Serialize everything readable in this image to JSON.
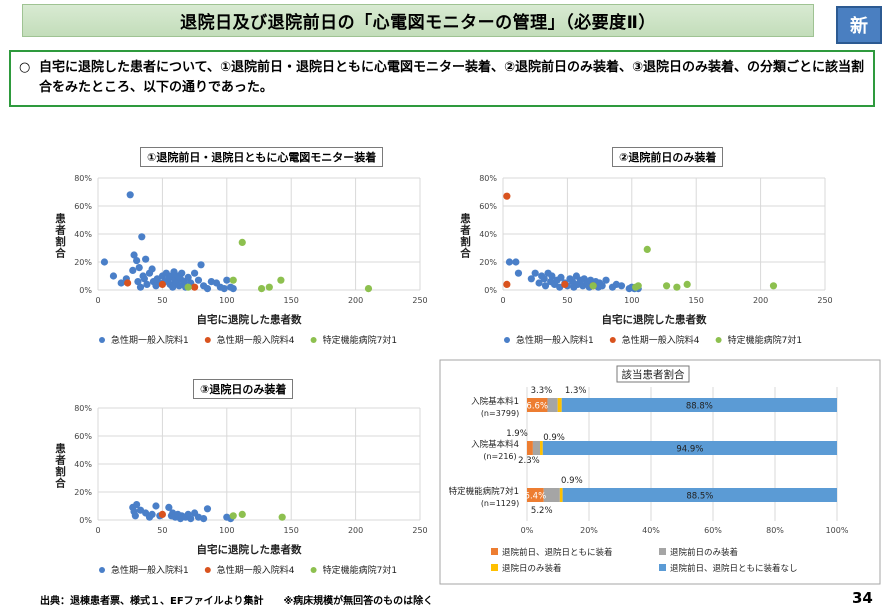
{
  "header": {
    "title": "退院日及び退院前日の「心電図モニターの管理」（必要度Ⅱ）",
    "badge": "新"
  },
  "summary": {
    "bullet": "○",
    "text": "自宅に退院した患者について、①退院前日・退院日ともに心電図モニター装着、②退院前日のみ装着、③退院日のみ装着、の分類ごとに該当割合をみたところ、以下の通りであった。"
  },
  "footer": {
    "source": "出典：退棟患者票、様式１、EFファイルより集計　　※病床規模が無回答のものは除く",
    "page_number": "34"
  },
  "colors": {
    "acute1": "#4a7fc8",
    "acute4": "#d9531e",
    "special7": "#8dc04f",
    "same_both": "#ed7d31",
    "prev_only": "#a5a5a5",
    "day_only": "#ffc000",
    "none": "#5b9bd5",
    "title_green": "#c9e2c0",
    "box_border": "#2e9a3d"
  },
  "chart_data": [
    {
      "type": "scatter",
      "title": "①退院前日・退院日ともに心電図モニター装着",
      "xlabel": "自宅に退院した患者数",
      "ylabel": "患者割合",
      "xlim": [
        0,
        250
      ],
      "ylim": [
        0,
        0.8
      ],
      "xticks": [
        "0",
        "50",
        "100",
        "150",
        "200",
        "250"
      ],
      "yticks": [
        "0%",
        "20%",
        "40%",
        "60%",
        "80%"
      ],
      "legend_position": "bottom",
      "series": [
        {
          "name": "急性期一般入院料1",
          "color_key": "acute1",
          "points": [
            [
              5,
              0.2
            ],
            [
              12,
              0.1
            ],
            [
              18,
              0.05
            ],
            [
              22,
              0.08
            ],
            [
              25,
              0.68
            ],
            [
              27,
              0.14
            ],
            [
              28,
              0.25
            ],
            [
              30,
              0.21
            ],
            [
              31,
              0.06
            ],
            [
              32,
              0.16
            ],
            [
              33,
              0.02
            ],
            [
              34,
              0.38
            ],
            [
              35,
              0.1
            ],
            [
              36,
              0.08
            ],
            [
              37,
              0.22
            ],
            [
              38,
              0.04
            ],
            [
              40,
              0.12
            ],
            [
              42,
              0.15
            ],
            [
              43,
              0.06
            ],
            [
              45,
              0.03
            ],
            [
              46,
              0.08
            ],
            [
              48,
              0.05
            ],
            [
              50,
              0.1
            ],
            [
              52,
              0.06
            ],
            [
              53,
              0.12
            ],
            [
              55,
              0.08
            ],
            [
              56,
              0.04
            ],
            [
              57,
              0.1
            ],
            [
              58,
              0.02
            ],
            [
              59,
              0.13
            ],
            [
              60,
              0.07
            ],
            [
              61,
              0.05
            ],
            [
              62,
              0.1
            ],
            [
              63,
              0.03
            ],
            [
              64,
              0.08
            ],
            [
              65,
              0.12
            ],
            [
              66,
              0.04
            ],
            [
              67,
              0.06
            ],
            [
              68,
              0.02
            ],
            [
              70,
              0.09
            ],
            [
              72,
              0.05
            ],
            [
              75,
              0.12
            ],
            [
              78,
              0.07
            ],
            [
              80,
              0.18
            ],
            [
              82,
              0.03
            ],
            [
              85,
              0.01
            ],
            [
              88,
              0.06
            ],
            [
              92,
              0.05
            ],
            [
              95,
              0.02
            ],
            [
              98,
              0.01
            ],
            [
              100,
              0.07
            ],
            [
              103,
              0.02
            ],
            [
              105,
              0.01
            ]
          ]
        },
        {
          "name": "急性期一般入院料4",
          "color_key": "acute4",
          "points": [
            [
              23,
              0.05
            ],
            [
              50,
              0.04
            ],
            [
              75,
              0.02
            ]
          ]
        },
        {
          "name": "特定機能病院7対1",
          "color_key": "special7",
          "points": [
            [
              70,
              0.02
            ],
            [
              105,
              0.07
            ],
            [
              112,
              0.34
            ],
            [
              127,
              0.01
            ],
            [
              133,
              0.02
            ],
            [
              142,
              0.07
            ],
            [
              210,
              0.01
            ]
          ]
        }
      ]
    },
    {
      "type": "scatter",
      "title": "②退院前日のみ装着",
      "xlabel": "自宅に退院した患者数",
      "ylabel": "患者割合",
      "xlim": [
        0,
        250
      ],
      "ylim": [
        0,
        0.8
      ],
      "xticks": [
        "0",
        "50",
        "100",
        "150",
        "200",
        "250"
      ],
      "yticks": [
        "0%",
        "20%",
        "40%",
        "60%",
        "80%"
      ],
      "legend_position": "bottom",
      "series": [
        {
          "name": "急性期一般入院料1",
          "color_key": "acute1",
          "points": [
            [
              5,
              0.2
            ],
            [
              10,
              0.2
            ],
            [
              12,
              0.12
            ],
            [
              22,
              0.08
            ],
            [
              25,
              0.12
            ],
            [
              28,
              0.05
            ],
            [
              30,
              0.1
            ],
            [
              32,
              0.08
            ],
            [
              33,
              0.03
            ],
            [
              35,
              0.12
            ],
            [
              37,
              0.06
            ],
            [
              38,
              0.1
            ],
            [
              40,
              0.04
            ],
            [
              42,
              0.07
            ],
            [
              44,
              0.02
            ],
            [
              45,
              0.09
            ],
            [
              48,
              0.05
            ],
            [
              50,
              0.03
            ],
            [
              52,
              0.08
            ],
            [
              54,
              0.06
            ],
            [
              55,
              0.02
            ],
            [
              57,
              0.1
            ],
            [
              58,
              0.04
            ],
            [
              60,
              0.07
            ],
            [
              62,
              0.03
            ],
            [
              63,
              0.08
            ],
            [
              65,
              0.05
            ],
            [
              67,
              0.02
            ],
            [
              68,
              0.07
            ],
            [
              70,
              0.04
            ],
            [
              72,
              0.06
            ],
            [
              74,
              0.02
            ],
            [
              75,
              0.05
            ],
            [
              77,
              0.03
            ],
            [
              80,
              0.07
            ],
            [
              85,
              0.02
            ],
            [
              88,
              0.04
            ],
            [
              92,
              0.03
            ],
            [
              98,
              0.01
            ],
            [
              100,
              0.02
            ],
            [
              102,
              0.01
            ],
            [
              105,
              0.01
            ]
          ]
        },
        {
          "name": "急性期一般入院料4",
          "color_key": "acute4",
          "points": [
            [
              3,
              0.67
            ],
            [
              3,
              0.04
            ],
            [
              48,
              0.04
            ],
            [
              70,
              0.03
            ]
          ]
        },
        {
          "name": "特定機能病院7対1",
          "color_key": "special7",
          "points": [
            [
              70,
              0.03
            ],
            [
              103,
              0.02
            ],
            [
              105,
              0.03
            ],
            [
              112,
              0.29
            ],
            [
              127,
              0.03
            ],
            [
              135,
              0.02
            ],
            [
              143,
              0.04
            ],
            [
              210,
              0.03
            ]
          ]
        }
      ]
    },
    {
      "type": "scatter",
      "title": "③退院日のみ装着",
      "xlabel": "自宅に退院した患者数",
      "ylabel": "患者割合",
      "xlim": [
        0,
        250
      ],
      "ylim": [
        0,
        0.8
      ],
      "xticks": [
        "0",
        "50",
        "100",
        "150",
        "200",
        "250"
      ],
      "yticks": [
        "0%",
        "20%",
        "40%",
        "60%",
        "80%"
      ],
      "legend_position": "bottom",
      "series": [
        {
          "name": "急性期一般入院料1",
          "color_key": "acute1",
          "points": [
            [
              27,
              0.09
            ],
            [
              28,
              0.06
            ],
            [
              29,
              0.03
            ],
            [
              30,
              0.11
            ],
            [
              33,
              0.07
            ],
            [
              37,
              0.05
            ],
            [
              40,
              0.02
            ],
            [
              42,
              0.04
            ],
            [
              45,
              0.1
            ],
            [
              48,
              0.03
            ],
            [
              55,
              0.09
            ],
            [
              57,
              0.03
            ],
            [
              58,
              0.05
            ],
            [
              60,
              0.02
            ],
            [
              62,
              0.04
            ],
            [
              64,
              0.01
            ],
            [
              65,
              0.03
            ],
            [
              68,
              0.02
            ],
            [
              70,
              0.04
            ],
            [
              72,
              0.01
            ],
            [
              75,
              0.05
            ],
            [
              78,
              0.02
            ],
            [
              82,
              0.01
            ],
            [
              85,
              0.08
            ],
            [
              100,
              0.02
            ],
            [
              103,
              0.01
            ]
          ]
        },
        {
          "name": "急性期一般入院料4",
          "color_key": "acute4",
          "points": [
            [
              50,
              0.04
            ]
          ]
        },
        {
          "name": "特定機能病院7対1",
          "color_key": "special7",
          "points": [
            [
              105,
              0.03
            ],
            [
              112,
              0.04
            ],
            [
              143,
              0.02
            ]
          ]
        }
      ]
    },
    {
      "type": "bar",
      "orientation": "horizontal-stacked",
      "title": "該当患者割合",
      "xticks": [
        "0%",
        "20%",
        "40%",
        "60%",
        "80%",
        "100%"
      ],
      "xlim": [
        0,
        100
      ],
      "legend_position": "bottom",
      "categories": [
        {
          "label": "入院基本料1",
          "n": "(n=3799)"
        },
        {
          "label": "入院基本料4",
          "n": "(n=216)"
        },
        {
          "label": "特定機能病院7対1",
          "n": "(n=1129)"
        }
      ],
      "series": [
        {
          "name": "退院前日、退院日ともに装着",
          "color_key": "same_both",
          "values": [
            6.6,
            1.9,
            5.4
          ],
          "labels": [
            "6.6%",
            "1.9%",
            "5.4%"
          ]
        },
        {
          "name": "退院前日のみ装着",
          "color_key": "prev_only",
          "values": [
            3.3,
            2.3,
            5.2
          ],
          "labels": [
            "3.3%",
            "2.3%",
            "5.2%"
          ]
        },
        {
          "name": "退院日のみ装着",
          "color_key": "day_only",
          "values": [
            1.3,
            0.9,
            0.9
          ],
          "labels": [
            "1.3%",
            "0.9%",
            "0.9%"
          ]
        },
        {
          "name": "退院前日、退院日ともに装着なし",
          "color_key": "none",
          "values": [
            88.8,
            94.9,
            88.5
          ],
          "labels": [
            "88.8%",
            "94.9%",
            "88.5%"
          ]
        }
      ]
    }
  ]
}
